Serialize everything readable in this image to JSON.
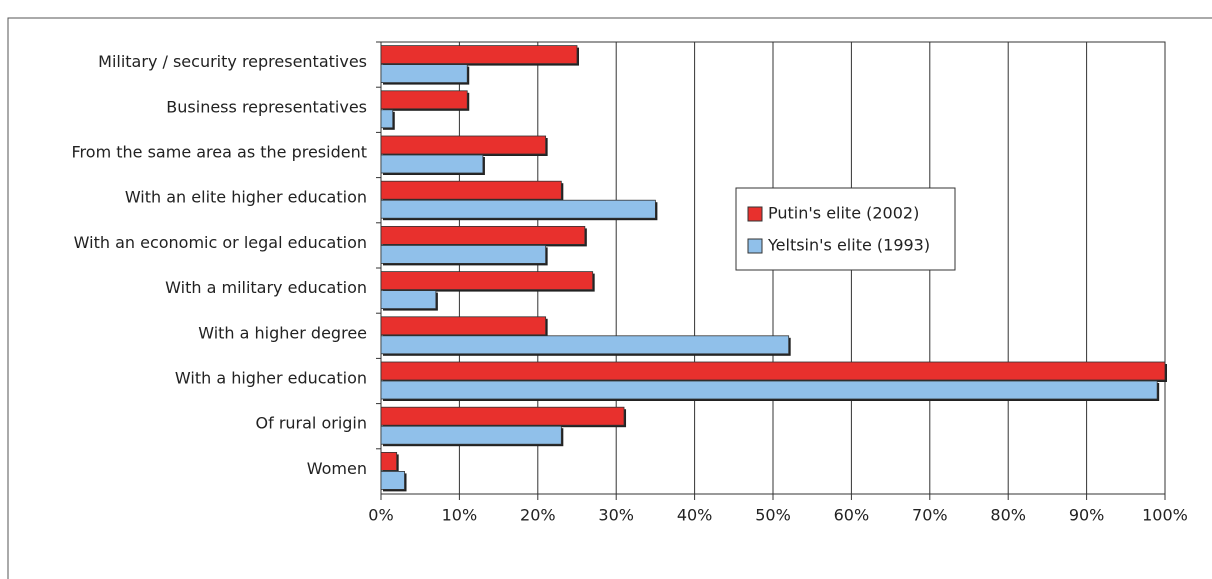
{
  "chart_data": {
    "type": "hbar",
    "categories": [
      "Military / security representatives",
      "Business representatives",
      "From the same area as the president",
      "With an elite higher education",
      "With an economic or legal education",
      "With a military education",
      "With a higher degree",
      "With a higher education",
      "Of rural origin",
      "Women"
    ],
    "series": [
      {
        "name": "Putin's elite (2002)",
        "color": "#e8302d",
        "values": [
          25,
          11,
          21,
          23,
          26,
          27,
          21,
          100,
          31,
          2
        ]
      },
      {
        "name": "Yeltsin's elite (1993)",
        "color": "#90c0ea",
        "values": [
          11,
          1.5,
          13,
          35,
          21,
          7,
          52,
          99,
          23,
          3
        ]
      }
    ],
    "xlim": [
      0,
      100
    ],
    "xticks": [
      {
        "value": 0,
        "label": "0%"
      },
      {
        "value": 10,
        "label": "10%"
      },
      {
        "value": 20,
        "label": "20%"
      },
      {
        "value": 30,
        "label": "30%"
      },
      {
        "value": 40,
        "label": "40%"
      },
      {
        "value": 50,
        "label": "50%"
      },
      {
        "value": 60,
        "label": "60%"
      },
      {
        "value": 70,
        "label": "70%"
      },
      {
        "value": 80,
        "label": "80%"
      },
      {
        "value": 90,
        "label": "90%"
      },
      {
        "value": 100,
        "label": "100%"
      }
    ],
    "grid": true,
    "legend": "center"
  }
}
